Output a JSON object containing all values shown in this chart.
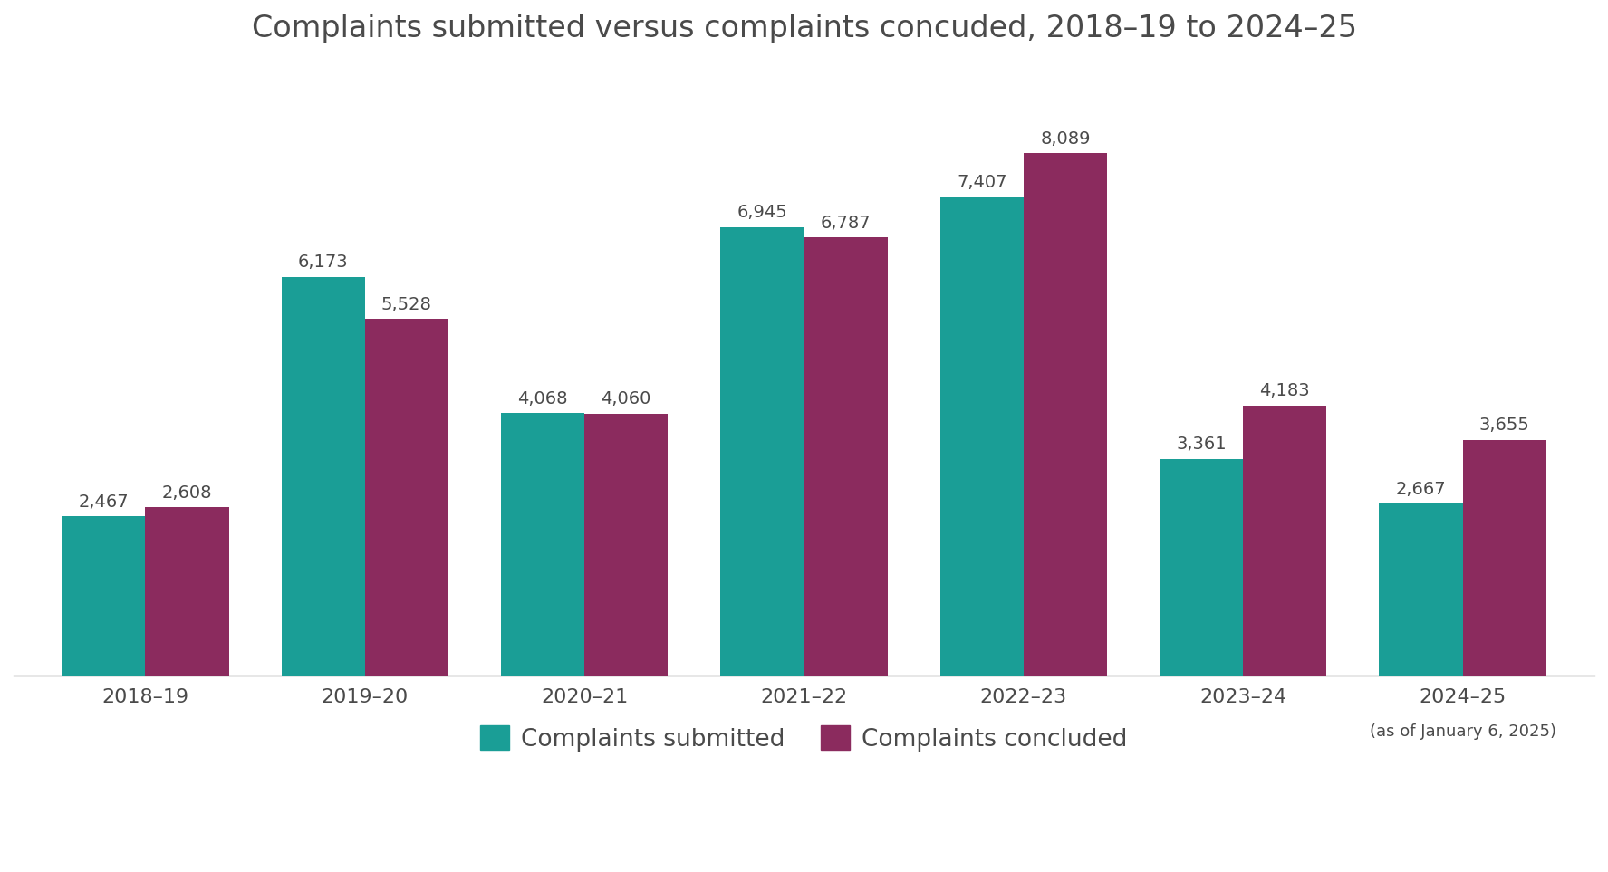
{
  "title": "Complaints submitted versus complaints concuded, 2018–19 to 2024–25",
  "categories": [
    "2018–19",
    "2019–20",
    "2020–21",
    "2021–22",
    "2022–23",
    "2023–24",
    "2024–25"
  ],
  "submitted": [
    2467,
    6173,
    4068,
    6945,
    7407,
    3361,
    2667
  ],
  "concluded": [
    2608,
    5528,
    4060,
    6787,
    8089,
    4183,
    3655
  ],
  "submitted_color": "#1a9e96",
  "concluded_color": "#8b2b5e",
  "title_color": "#4a4a4a",
  "label_color": "#4a4a4a",
  "bar_width": 0.38,
  "ylim": [
    0,
    9400
  ],
  "legend_submitted": "Complaints submitted",
  "legend_concluded": "Complaints concluded",
  "xlabel_extra": "(as of January 6, 2025)",
  "background_color": "#ffffff",
  "title_fontsize": 24,
  "label_fontsize": 14,
  "tick_fontsize": 16,
  "legend_fontsize": 19
}
